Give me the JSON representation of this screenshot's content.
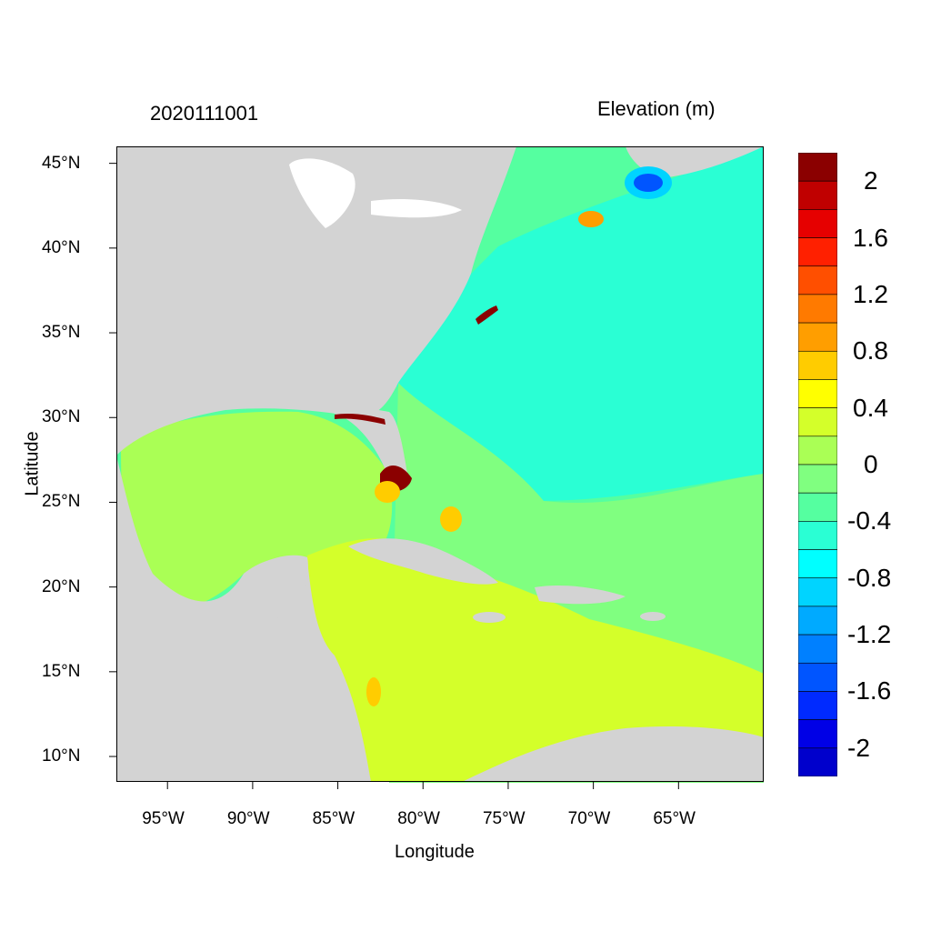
{
  "title_left": "2020111001",
  "title_right": "Elevation (m)",
  "map": {
    "x_axis_title": "Longitude",
    "y_axis_title": "Latitude",
    "lon_ticks": [
      "95°W",
      "90°W",
      "85°W",
      "80°W",
      "75°W",
      "70°W",
      "65°W"
    ],
    "lon_values": [
      -95,
      -90,
      -85,
      -80,
      -75,
      -70,
      -65
    ],
    "lat_ticks": [
      "10°N",
      "15°N",
      "20°N",
      "25°N",
      "30°N",
      "35°N",
      "40°N",
      "45°N"
    ],
    "lat_values": [
      10,
      15,
      20,
      25,
      30,
      35,
      40,
      45
    ],
    "lon_range": [
      -98,
      -60
    ],
    "lat_range": [
      8.5,
      46
    ],
    "land_color": "#d3d3d3",
    "region_colors": {
      "atlantic": "#55ffa0",
      "gulf": "#aaff55",
      "caribbean": "#d4ff2a",
      "eastcoast": "#2affd4",
      "florida_surge": "#8b0000"
    }
  },
  "colorbar": {
    "labels": [
      "2",
      "1.6",
      "1.2",
      "0.8",
      "0.4",
      "0",
      "-0.4",
      "-0.8",
      "-1.2",
      "-1.6",
      "-2"
    ],
    "colors": [
      "#8b0000",
      "#c00000",
      "#e60000",
      "#ff2000",
      "#ff4f00",
      "#ff7a00",
      "#ff9e00",
      "#ffcc00",
      "#ffff00",
      "#d4ff2a",
      "#aaff55",
      "#80ff80",
      "#55ffa0",
      "#2affd4",
      "#00ffff",
      "#00d4ff",
      "#00aaff",
      "#0080ff",
      "#0055ff",
      "#002aff",
      "#0000e6",
      "#0000cc"
    ]
  }
}
